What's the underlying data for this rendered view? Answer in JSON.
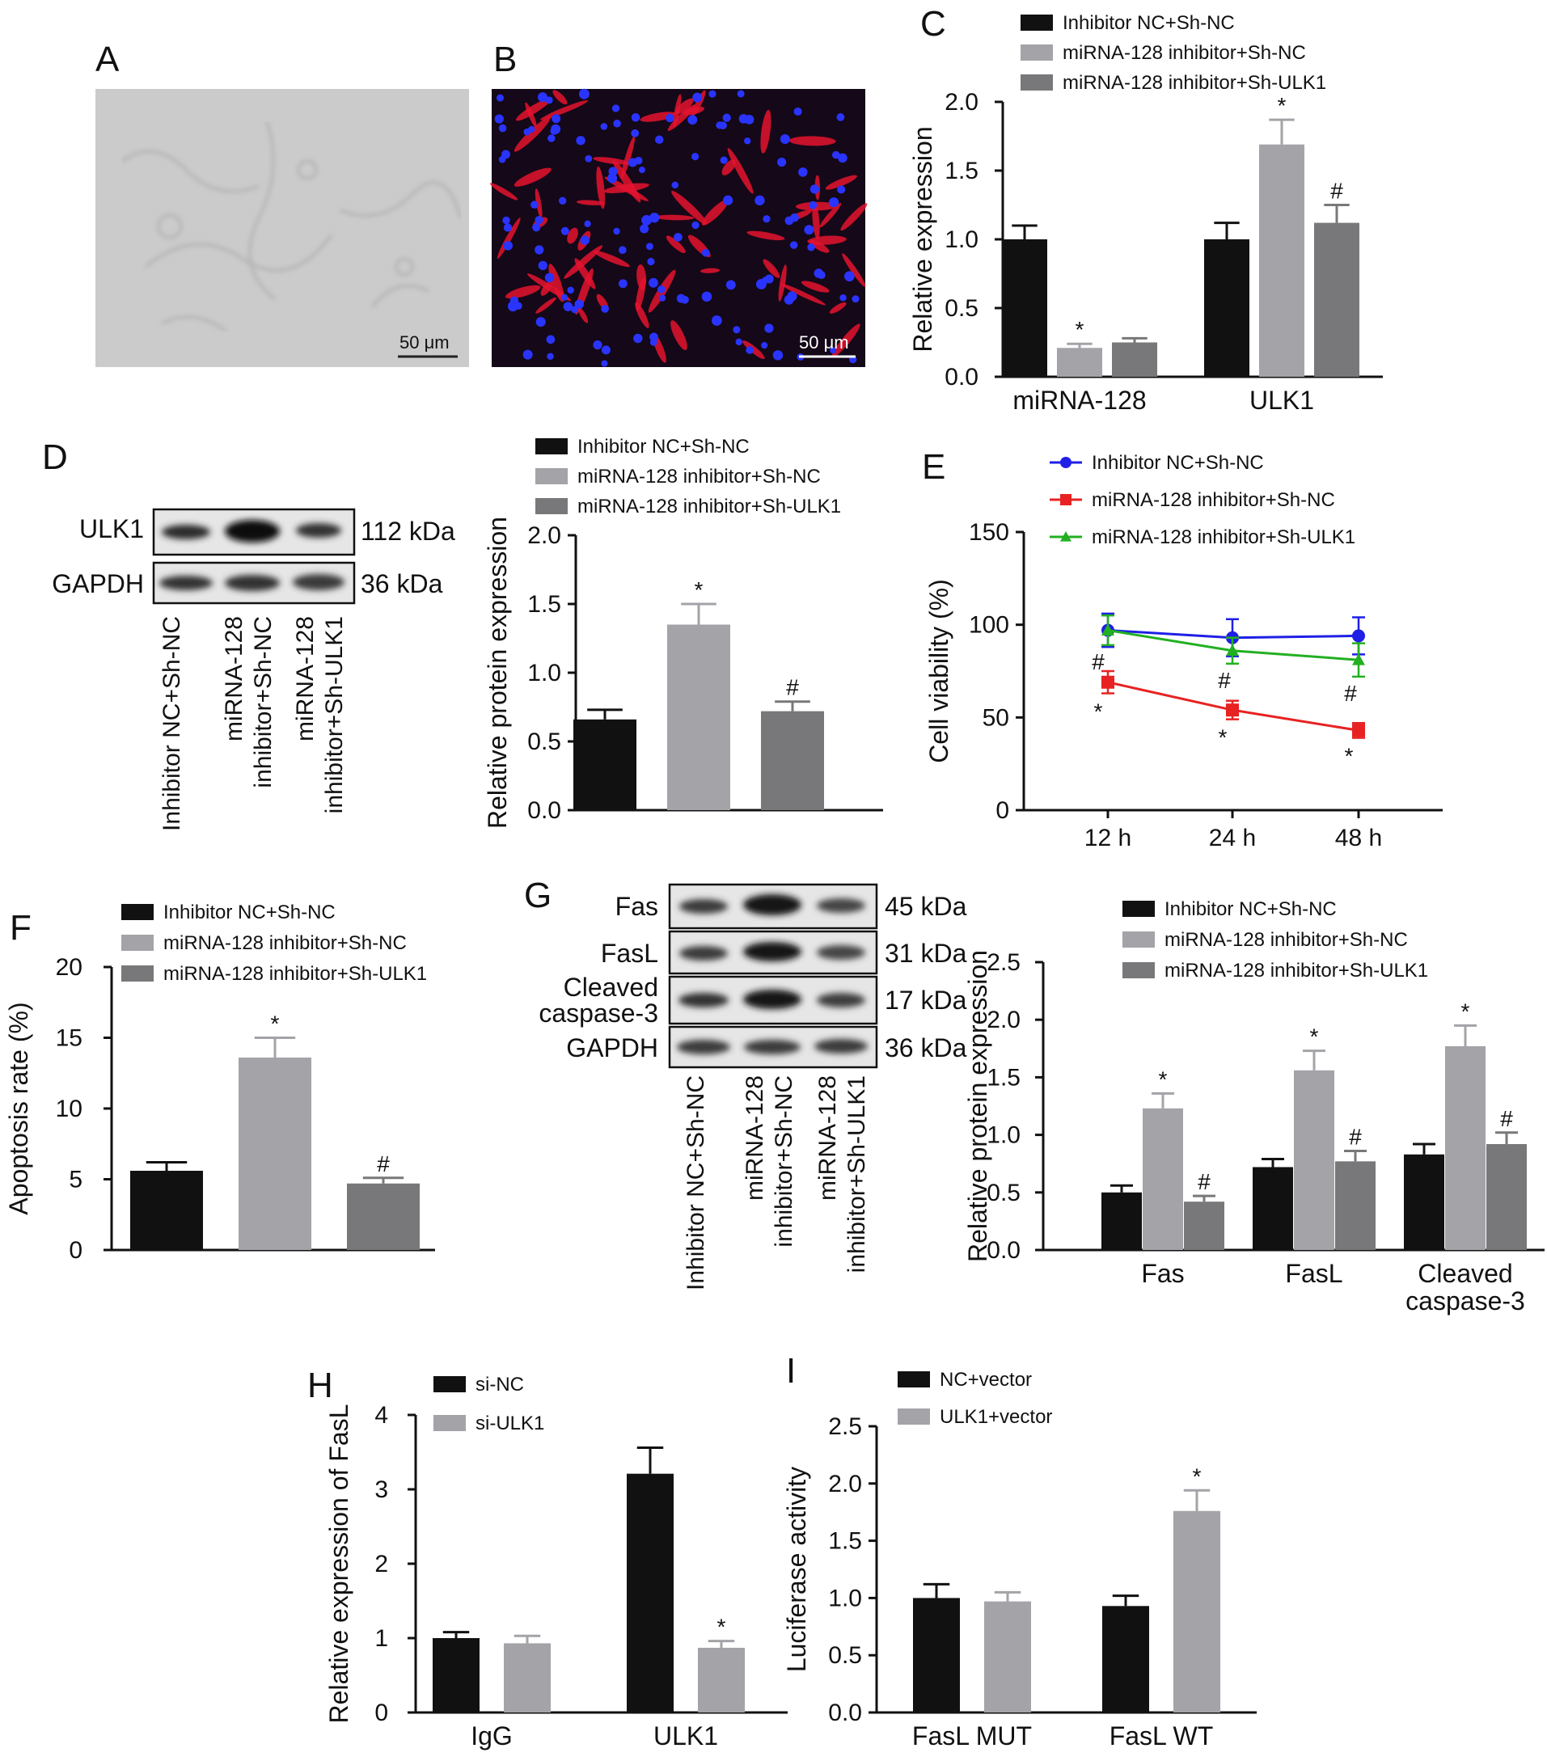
{
  "panels": {
    "A": {
      "letter": "A",
      "scale_bar": "50 μm"
    },
    "B": {
      "letter": "B",
      "scale_bar": "50 μm"
    },
    "C": {
      "letter": "C"
    },
    "D": {
      "letter": "D",
      "blot_rows": [
        {
          "name": "ULK1",
          "kda": "112 kDa"
        },
        {
          "name": "GAPDH",
          "kda": "36 kDa"
        }
      ],
      "lanes": [
        [
          "Inhibitor NC+Sh-NC"
        ],
        [
          "miRNA-128",
          "inhibitor+Sh-NC"
        ],
        [
          "miRNA-128",
          "inhibitor+Sh-ULK1"
        ]
      ]
    },
    "E": {
      "letter": "E"
    },
    "F": {
      "letter": "F"
    },
    "G": {
      "letter": "G",
      "blot_rows": [
        {
          "name": [
            "Fas"
          ],
          "kda": "45 kDa"
        },
        {
          "name": [
            "FasL"
          ],
          "kda": "31 kDa"
        },
        {
          "name": [
            "Cleaved",
            "caspase-3"
          ],
          "kda": "17 kDa"
        },
        {
          "name": [
            "GAPDH"
          ],
          "kda": "36 kDa"
        }
      ],
      "lanes": [
        [
          "Inhibitor NC+Sh-NC"
        ],
        [
          "miRNA-128",
          "inhibitor+Sh-NC"
        ],
        [
          "miRNA-128",
          "inhibitor+Sh-ULK1"
        ]
      ]
    },
    "H": {
      "letter": "H"
    },
    "I": {
      "letter": "I"
    }
  },
  "colors": {
    "black": "#111111",
    "light_gray": "#a3a3a8",
    "dark_gray": "#78787a",
    "blue": "#1f1fe6",
    "red": "#e82222",
    "green": "#22b022"
  },
  "chart_data": [
    {
      "id": "C",
      "type": "bar",
      "ylabel": "Relative expression",
      "ylim": [
        0,
        2.0
      ],
      "yticks": [
        "0.0",
        "0.5",
        "1.0",
        "1.5",
        "2.0"
      ],
      "categories": [
        "miRNA-128",
        "ULK1"
      ],
      "series": [
        {
          "name": "Inhibitor NC+Sh-NC",
          "values": [
            1.0,
            1.0
          ],
          "errors": [
            0.1,
            0.12
          ],
          "marks": [
            "",
            ""
          ]
        },
        {
          "name": "miRNA-128 inhibitor+Sh-NC",
          "values": [
            0.21,
            1.69
          ],
          "errors": [
            0.03,
            0.18
          ],
          "marks": [
            "*",
            "*"
          ]
        },
        {
          "name": "miRNA-128 inhibitor+Sh-ULK1",
          "values": [
            0.25,
            1.12
          ],
          "errors": [
            0.03,
            0.13
          ],
          "marks": [
            "",
            "#"
          ]
        }
      ]
    },
    {
      "id": "D",
      "type": "bar",
      "ylabel": "Relative protein expression",
      "ylim": [
        0,
        2.0
      ],
      "yticks": [
        "0.0",
        "0.5",
        "1.0",
        "1.5",
        "2.0"
      ],
      "categories": [
        ""
      ],
      "series": [
        {
          "name": "Inhibitor NC+Sh-NC",
          "values": [
            0.66
          ],
          "errors": [
            0.07
          ],
          "marks": [
            ""
          ]
        },
        {
          "name": "miRNA-128 inhibitor+Sh-NC",
          "values": [
            1.35
          ],
          "errors": [
            0.15
          ],
          "marks": [
            "*"
          ]
        },
        {
          "name": "miRNA-128 inhibitor+Sh-ULK1",
          "values": [
            0.72
          ],
          "errors": [
            0.07
          ],
          "marks": [
            "#"
          ]
        }
      ]
    },
    {
      "id": "E",
      "type": "line",
      "ylabel": "Cell viability (%)",
      "ylim": [
        0,
        150
      ],
      "yticks": [
        "0",
        "50",
        "100",
        "150"
      ],
      "x": [
        "12 h",
        "24 h",
        "48 h"
      ],
      "series": [
        {
          "name": "Inhibitor NC+Sh-NC",
          "values": [
            97,
            93,
            94
          ],
          "errors": [
            9,
            10,
            10
          ],
          "marks": [
            "",
            "",
            ""
          ]
        },
        {
          "name": "miRNA-128 inhibitor+Sh-NC",
          "values": [
            69,
            54,
            43
          ],
          "errors": [
            6,
            5,
            4
          ],
          "marks": [
            "*",
            "*",
            "*"
          ]
        },
        {
          "name": "miRNA-128 inhibitor+Sh-ULK1",
          "values": [
            97,
            86,
            81
          ],
          "errors": [
            8,
            7,
            9
          ],
          "marks": [
            "#",
            "#",
            "#"
          ]
        }
      ]
    },
    {
      "id": "F",
      "type": "bar",
      "ylabel": "Apoptosis rate (%)",
      "ylim": [
        0,
        20
      ],
      "yticks": [
        "0",
        "5",
        "10",
        "15",
        "20"
      ],
      "categories": [
        ""
      ],
      "series": [
        {
          "name": "Inhibitor NC+Sh-NC",
          "values": [
            5.6
          ],
          "errors": [
            0.6
          ],
          "marks": [
            ""
          ]
        },
        {
          "name": "miRNA-128 inhibitor+Sh-NC",
          "values": [
            13.6
          ],
          "errors": [
            1.4
          ],
          "marks": [
            "*"
          ]
        },
        {
          "name": "miRNA-128 inhibitor+Sh-ULK1",
          "values": [
            4.7
          ],
          "errors": [
            0.4
          ],
          "marks": [
            "#"
          ]
        }
      ]
    },
    {
      "id": "G",
      "type": "bar",
      "ylabel": "Relative protein expression",
      "ylim": [
        0,
        2.5
      ],
      "yticks": [
        "0.0",
        "0.5",
        "1.0",
        "1.5",
        "2.0",
        "2.5"
      ],
      "categories": [
        [
          "Fas"
        ],
        [
          "FasL"
        ],
        [
          "Cleaved",
          "caspase-3"
        ]
      ],
      "series": [
        {
          "name": "Inhibitor NC+Sh-NC",
          "values": [
            0.5,
            0.72,
            0.83
          ],
          "errors": [
            0.06,
            0.07,
            0.09
          ],
          "marks": [
            "",
            "",
            ""
          ]
        },
        {
          "name": "miRNA-128 inhibitor+Sh-NC",
          "values": [
            1.23,
            1.56,
            1.77
          ],
          "errors": [
            0.13,
            0.17,
            0.18
          ],
          "marks": [
            "*",
            "*",
            "*"
          ]
        },
        {
          "name": "miRNA-128 inhibitor+Sh-ULK1",
          "values": [
            0.42,
            0.77,
            0.92
          ],
          "errors": [
            0.05,
            0.09,
            0.1
          ],
          "marks": [
            "#",
            "#",
            "#"
          ]
        }
      ]
    },
    {
      "id": "H",
      "type": "bar",
      "ylabel": "Relative expression of FasL",
      "ylim": [
        0,
        4
      ],
      "yticks": [
        "0",
        "1",
        "2",
        "3",
        "4"
      ],
      "categories": [
        "IgG",
        "ULK1"
      ],
      "series": [
        {
          "name": "si-NC",
          "values": [
            1.0,
            3.21
          ],
          "errors": [
            0.08,
            0.35
          ],
          "marks": [
            "",
            ""
          ]
        },
        {
          "name": "si-ULK1",
          "values": [
            0.93,
            0.87
          ],
          "errors": [
            0.1,
            0.09
          ],
          "marks": [
            "",
            "*"
          ]
        }
      ]
    },
    {
      "id": "I",
      "type": "bar",
      "ylabel": "Luciferase activity",
      "ylim": [
        0,
        2.5
      ],
      "yticks": [
        "0.0",
        "0.5",
        "1.0",
        "1.5",
        "2.0",
        "2.5"
      ],
      "categories": [
        "FasL MUT",
        "FasL WT"
      ],
      "series": [
        {
          "name": "NC+vector",
          "values": [
            1.0,
            0.93
          ],
          "errors": [
            0.12,
            0.09
          ],
          "marks": [
            "",
            ""
          ]
        },
        {
          "name": "ULK1+vector",
          "values": [
            0.97,
            1.76
          ],
          "errors": [
            0.08,
            0.18
          ],
          "marks": [
            "",
            "*"
          ]
        }
      ]
    }
  ]
}
